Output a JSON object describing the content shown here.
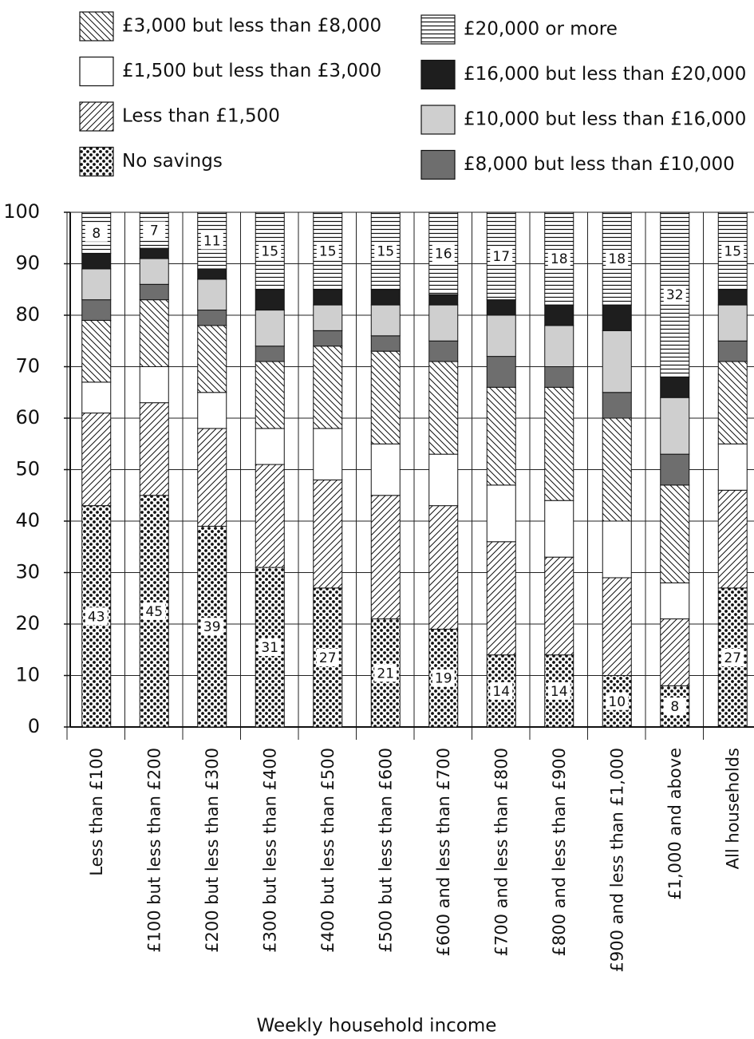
{
  "chart_data": {
    "type": "stacked_bar",
    "x_label": "Weekly household income",
    "categories": [
      "Less than £100",
      "£100 but less than £200",
      "£200 but less than £300",
      "£300 but less than £400",
      "£400 but less than £500",
      "£500 but less than £600",
      "£600 and less than £700",
      "£700 and less than £800",
      "£800 and less than £900",
      "£900 and less than £1,000",
      "£1,000 and above",
      "All households"
    ],
    "series": [
      {
        "name": "No savings",
        "color": "#ffffff",
        "pattern": "dots",
        "show_labels": true,
        "values": [
          43,
          45,
          39,
          31,
          27,
          21,
          19,
          14,
          14,
          10,
          8,
          27
        ]
      },
      {
        "name": "Less than £1,500",
        "color": "#ffffff",
        "pattern": "slash",
        "values": [
          18,
          18,
          19,
          20,
          21,
          24,
          24,
          22,
          19,
          19,
          13,
          19
        ]
      },
      {
        "name": "£1,500 but less than £3,000",
        "color": "#ffffff",
        "pattern": "none",
        "values": [
          6,
          7,
          7,
          7,
          10,
          10,
          10,
          11,
          11,
          11,
          7,
          9
        ]
      },
      {
        "name": "£3,000 but less than £8,000",
        "color": "#ffffff",
        "pattern": "backslash",
        "values": [
          12,
          13,
          13,
          13,
          16,
          18,
          18,
          19,
          22,
          20,
          19,
          16
        ]
      },
      {
        "name": "£8,000 but less than £10,000",
        "color": "#6e6e6e",
        "pattern": "none",
        "values": [
          4,
          3,
          3,
          3,
          3,
          3,
          4,
          6,
          4,
          5,
          6,
          4
        ]
      },
      {
        "name": "£10,000 but less than £16,000",
        "color": "#cfcfcf",
        "pattern": "none",
        "values": [
          6,
          5,
          6,
          7,
          5,
          6,
          7,
          8,
          8,
          12,
          11,
          7
        ]
      },
      {
        "name": "£16,000 but less than £20,000",
        "color": "#1e1e1e",
        "pattern": "none",
        "values": [
          3,
          2,
          2,
          4,
          3,
          3,
          2,
          3,
          4,
          5,
          4,
          3
        ]
      },
      {
        "name": "£20,000 or more",
        "color": "#ffffff",
        "pattern": "hlines",
        "show_labels": true,
        "values": [
          8,
          7,
          11,
          15,
          15,
          15,
          16,
          17,
          18,
          18,
          32,
          15
        ]
      }
    ],
    "ylim": [
      0,
      100
    ],
    "yticks": [
      0,
      10,
      20,
      30,
      40,
      50,
      60,
      70,
      80,
      90,
      100
    ],
    "grid": true
  }
}
